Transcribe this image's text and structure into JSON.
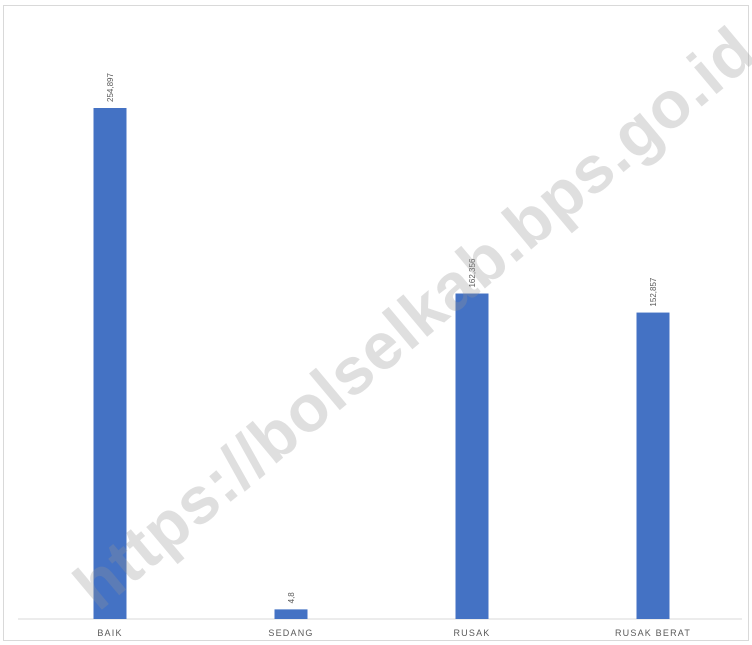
{
  "chart_data": {
    "type": "bar",
    "categories": [
      "BAIK",
      "SEDANG",
      "RUSAK",
      "RUSAK BERAT"
    ],
    "values": [
      254.897,
      4.8,
      162.356,
      152.857
    ],
    "data_labels": [
      "254,897",
      "4,8",
      "162,356",
      "152,857"
    ],
    "title": "",
    "xlabel": "",
    "ylabel": "",
    "ylim": [
      0,
      254.897
    ],
    "grid": false,
    "legend": "none",
    "bar_color": "#4472c4"
  },
  "watermark": "https://bolselkab.bps.go.id"
}
